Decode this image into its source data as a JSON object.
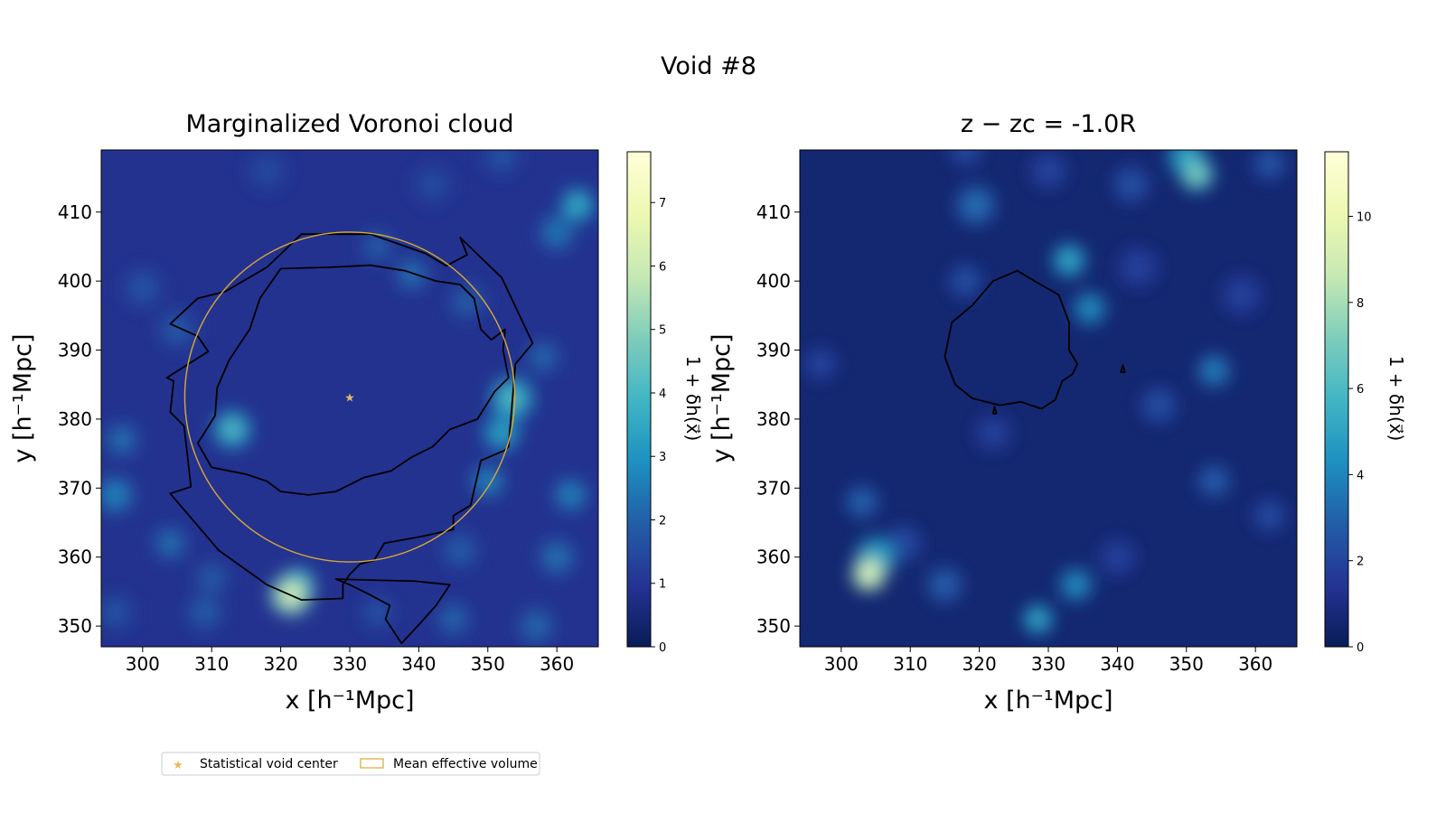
{
  "figure": {
    "suptitle": "Void #8"
  },
  "legend": {
    "placement": "bottom-left",
    "items": [
      {
        "label": "Statistical void center",
        "marker": "star",
        "color": "#e8b860"
      },
      {
        "label": "Mean effective volume",
        "marker": "rect-outline",
        "color": "#d9a836"
      }
    ]
  },
  "colormap": {
    "name": "YlGnBu",
    "stops": [
      "#081d58",
      "#253494",
      "#225ea8",
      "#1d91c0",
      "#41b6c4",
      "#7fcdbb",
      "#c7e9b4",
      "#edf8b1",
      "#ffffd9"
    ]
  },
  "chart_data": [
    {
      "type": "heatmap",
      "title": "Marginalized Voronoi cloud",
      "xlabel": "x [h⁻¹Mpc]",
      "ylabel": "y [h⁻¹Mpc]",
      "xlim": [
        294,
        366
      ],
      "ylim": [
        347,
        419
      ],
      "xticks": [
        300,
        310,
        320,
        330,
        340,
        350,
        360
      ],
      "yticks": [
        350,
        360,
        370,
        380,
        390,
        400,
        410
      ],
      "colorbar": {
        "label": "1 + δh(x⃗)",
        "min": 0,
        "max": 7.8,
        "ticks": [
          0,
          1,
          2,
          3,
          4,
          5,
          6,
          7
        ]
      },
      "background_level": 0.9,
      "blobs": [
        {
          "x": 313,
          "y": 378.5,
          "value": 4.2,
          "r": 2.2
        },
        {
          "x": 321.5,
          "y": 354.5,
          "value": 6.5,
          "r": 2.4
        },
        {
          "x": 322.5,
          "y": 356,
          "value": 4.5,
          "r": 2.0
        },
        {
          "x": 353.5,
          "y": 383,
          "value": 4.2,
          "r": 2.5
        },
        {
          "x": 352,
          "y": 378,
          "value": 3.5,
          "r": 2.2
        },
        {
          "x": 350,
          "y": 371,
          "value": 2.8,
          "r": 2.0
        },
        {
          "x": 363,
          "y": 411,
          "value": 3.8,
          "r": 2.0
        },
        {
          "x": 360,
          "y": 407,
          "value": 2.5,
          "r": 2.2
        },
        {
          "x": 296,
          "y": 369,
          "value": 2.8,
          "r": 2.2
        },
        {
          "x": 297,
          "y": 377,
          "value": 2.4,
          "r": 2.0
        },
        {
          "x": 304,
          "y": 362,
          "value": 2.4,
          "r": 2.0
        },
        {
          "x": 310,
          "y": 357,
          "value": 2.0,
          "r": 2.0
        },
        {
          "x": 309,
          "y": 352,
          "value": 2.0,
          "r": 2.2
        },
        {
          "x": 296,
          "y": 352,
          "value": 1.8,
          "r": 2.2
        },
        {
          "x": 339,
          "y": 401,
          "value": 2.4,
          "r": 2.0
        },
        {
          "x": 334,
          "y": 405,
          "value": 2.0,
          "r": 2.0
        },
        {
          "x": 347,
          "y": 397,
          "value": 2.0,
          "r": 2.2
        },
        {
          "x": 358,
          "y": 389,
          "value": 2.2,
          "r": 2.0
        },
        {
          "x": 362,
          "y": 369,
          "value": 2.8,
          "r": 2.0
        },
        {
          "x": 360,
          "y": 360,
          "value": 2.4,
          "r": 2.2
        },
        {
          "x": 346,
          "y": 361,
          "value": 2.0,
          "r": 2.2
        },
        {
          "x": 345,
          "y": 351,
          "value": 2.2,
          "r": 2.0
        },
        {
          "x": 334,
          "y": 352,
          "value": 1.8,
          "r": 2.0
        },
        {
          "x": 357,
          "y": 350,
          "value": 2.2,
          "r": 2.2
        },
        {
          "x": 305,
          "y": 393,
          "value": 1.9,
          "r": 2.4
        },
        {
          "x": 300,
          "y": 399,
          "value": 1.8,
          "r": 2.4
        },
        {
          "x": 318,
          "y": 416,
          "value": 1.6,
          "r": 2.4
        },
        {
          "x": 342,
          "y": 414,
          "value": 1.6,
          "r": 2.4
        },
        {
          "x": 352,
          "y": 418,
          "value": 1.8,
          "r": 2.2
        }
      ],
      "contours": [
        [
          [
            323,
            406.8
          ],
          [
            333,
            406.8
          ],
          [
            341,
            404
          ],
          [
            344,
            402.2
          ],
          [
            347,
            403.8
          ],
          [
            346,
            406.3
          ],
          [
            352,
            400.5
          ],
          [
            356.5,
            391
          ],
          [
            354,
            388
          ],
          [
            353,
            376
          ],
          [
            352.5,
            375.5
          ],
          [
            349,
            374
          ],
          [
            347.5,
            367.5
          ],
          [
            345,
            366
          ],
          [
            345,
            364
          ],
          [
            340.5,
            363
          ],
          [
            335,
            362
          ],
          [
            333.5,
            359.5
          ],
          [
            331.5,
            359
          ],
          [
            330,
            357.5
          ],
          [
            329,
            356
          ],
          [
            329,
            354
          ],
          [
            323,
            353.8
          ],
          [
            318,
            356
          ],
          [
            311,
            361
          ],
          [
            304,
            369.2
          ],
          [
            307,
            370.2
          ],
          [
            306,
            379
          ],
          [
            304,
            381
          ],
          [
            304.5,
            385.5
          ],
          [
            303.5,
            386
          ],
          [
            309.5,
            389.8
          ],
          [
            308,
            392
          ],
          [
            304,
            393.8
          ],
          [
            308,
            397.5
          ],
          [
            312,
            398.5
          ],
          [
            318,
            402
          ],
          [
            323,
            406.8
          ]
        ],
        [
          [
            320,
            401.8
          ],
          [
            327,
            402
          ],
          [
            333,
            402.3
          ],
          [
            338,
            401.5
          ],
          [
            342.5,
            400
          ],
          [
            346,
            399.5
          ],
          [
            348,
            397.5
          ],
          [
            349,
            393
          ],
          [
            350.5,
            391.5
          ],
          [
            352.5,
            393
          ],
          [
            352.2,
            390
          ],
          [
            353,
            386
          ],
          [
            351,
            384
          ],
          [
            348.5,
            380
          ],
          [
            344.5,
            378.5
          ],
          [
            342,
            376
          ],
          [
            339,
            374.5
          ],
          [
            336,
            372.5
          ],
          [
            332,
            371.5
          ],
          [
            328,
            369.5
          ],
          [
            324,
            369
          ],
          [
            320,
            369.5
          ],
          [
            318,
            371
          ],
          [
            315,
            372
          ],
          [
            310,
            373
          ],
          [
            308,
            376.5
          ],
          [
            310.5,
            380.5
          ],
          [
            310.8,
            384.5
          ],
          [
            312.5,
            388.5
          ],
          [
            315.5,
            393
          ],
          [
            317,
            397.5
          ],
          [
            320,
            401.8
          ]
        ],
        [
          [
            328,
            356.8
          ],
          [
            339.5,
            356.5
          ],
          [
            344.5,
            356
          ],
          [
            342.5,
            353
          ],
          [
            340,
            350.2
          ],
          [
            337.5,
            347.5
          ],
          [
            335.2,
            351
          ],
          [
            335.8,
            353
          ],
          [
            333,
            354.5
          ],
          [
            330,
            356
          ],
          [
            328,
            356.8
          ]
        ]
      ],
      "center": {
        "x": 330,
        "y": 383.2
      },
      "mean_effective_radius": 23.9
    },
    {
      "type": "heatmap",
      "title": "z − zc = -1.0R",
      "xlabel": "x [h⁻¹Mpc]",
      "ylabel": "y [h⁻¹Mpc]",
      "xlim": [
        294,
        366
      ],
      "ylim": [
        347,
        419
      ],
      "xticks": [
        300,
        310,
        320,
        330,
        340,
        350,
        360
      ],
      "yticks": [
        350,
        360,
        370,
        380,
        390,
        400,
        410
      ],
      "colorbar": {
        "label": "1 + δh(x⃗)",
        "min": 0,
        "max": 11.5,
        "ticks": [
          0,
          2,
          4,
          6,
          8,
          10
        ]
      },
      "background_level": 0.6,
      "blobs": [
        {
          "x": 304,
          "y": 357.5,
          "value": 10.5,
          "r": 2.0
        },
        {
          "x": 305,
          "y": 360,
          "value": 5.5,
          "r": 2.4
        },
        {
          "x": 351.5,
          "y": 415.5,
          "value": 7.5,
          "r": 2.0
        },
        {
          "x": 350,
          "y": 418,
          "value": 5.5,
          "r": 2.2
        },
        {
          "x": 333,
          "y": 403,
          "value": 5.5,
          "r": 2.0
        },
        {
          "x": 336,
          "y": 396,
          "value": 4.5,
          "r": 2.0
        },
        {
          "x": 328.5,
          "y": 351,
          "value": 5.5,
          "r": 1.8
        },
        {
          "x": 334,
          "y": 356,
          "value": 4.5,
          "r": 2.0
        },
        {
          "x": 319.5,
          "y": 411,
          "value": 3.5,
          "r": 2.4
        },
        {
          "x": 318,
          "y": 400,
          "value": 2.6,
          "r": 2.0
        },
        {
          "x": 354,
          "y": 387,
          "value": 4.0,
          "r": 2.0
        },
        {
          "x": 346,
          "y": 382,
          "value": 2.5,
          "r": 2.2
        },
        {
          "x": 354,
          "y": 371,
          "value": 3.0,
          "r": 2.0
        },
        {
          "x": 362,
          "y": 366,
          "value": 2.4,
          "r": 2.0
        },
        {
          "x": 315,
          "y": 356,
          "value": 3.0,
          "r": 2.2
        },
        {
          "x": 309,
          "y": 362,
          "value": 2.4,
          "r": 2.2
        },
        {
          "x": 303,
          "y": 368,
          "value": 3.2,
          "r": 2.0
        },
        {
          "x": 342,
          "y": 414,
          "value": 2.6,
          "r": 2.2
        },
        {
          "x": 330,
          "y": 416,
          "value": 2.2,
          "r": 2.2
        },
        {
          "x": 318,
          "y": 419,
          "value": 2.4,
          "r": 2.0
        },
        {
          "x": 362,
          "y": 417,
          "value": 2.8,
          "r": 2.0
        },
        {
          "x": 297,
          "y": 388,
          "value": 2.2,
          "r": 2.0
        },
        {
          "x": 322,
          "y": 378,
          "value": 2.0,
          "r": 2.2
        },
        {
          "x": 343,
          "y": 402,
          "value": 2.0,
          "r": 2.4
        },
        {
          "x": 358,
          "y": 398,
          "value": 2.0,
          "r": 2.4
        },
        {
          "x": 340,
          "y": 360,
          "value": 2.0,
          "r": 2.2
        }
      ],
      "contours": [
        [
          [
            325.5,
            401.5
          ],
          [
            322,
            400
          ],
          [
            319,
            396.5
          ],
          [
            316,
            394
          ],
          [
            315,
            389
          ],
          [
            316.5,
            385
          ],
          [
            319,
            383
          ],
          [
            323,
            382
          ],
          [
            326,
            382.5
          ],
          [
            329,
            381.5
          ],
          [
            331,
            382.8
          ],
          [
            332,
            385.5
          ],
          [
            333.5,
            386.5
          ],
          [
            334.2,
            388
          ],
          [
            333,
            390
          ],
          [
            333,
            394
          ],
          [
            331.5,
            398
          ],
          [
            328,
            400
          ],
          [
            325.5,
            401.5
          ]
        ],
        [
          [
            322.2,
            381.8
          ],
          [
            322,
            380.8
          ],
          [
            322.5,
            380.8
          ],
          [
            322.2,
            381.8
          ]
        ],
        [
          [
            340.8,
            387.8
          ],
          [
            340.5,
            386.8
          ],
          [
            341.1,
            386.8
          ],
          [
            340.8,
            387.8
          ]
        ]
      ]
    }
  ]
}
